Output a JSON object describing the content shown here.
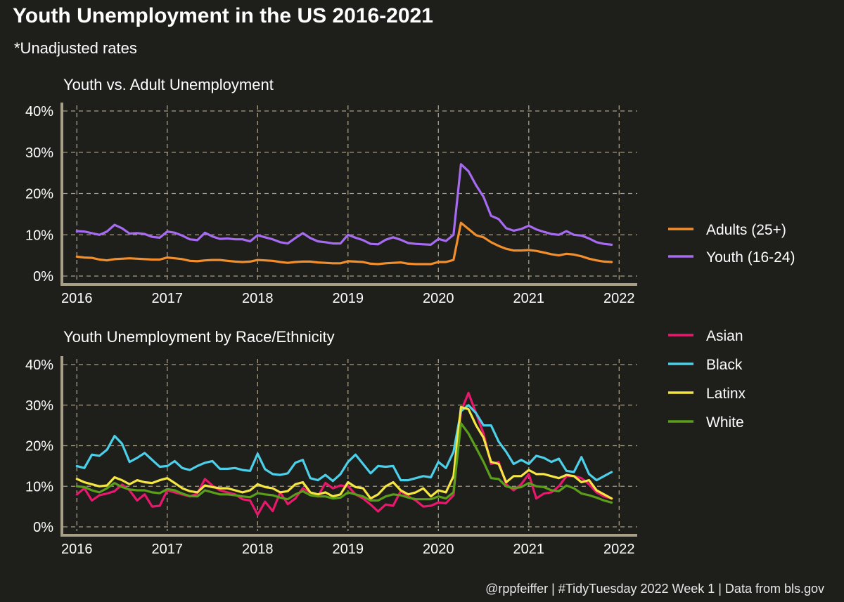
{
  "title": "Youth Unemployment in the US 2016-2021",
  "subtitle": "*Unadjusted rates",
  "caption": "@rppfeiffer | #TidyTuesday 2022 Week 1 | Data from bls.gov",
  "colors": {
    "background": "#1e1e1b",
    "grid": "#a89f88",
    "axis": "#a89f88",
    "text": "#ffffff"
  },
  "chart_data": [
    {
      "type": "line",
      "title": "Youth vs. Adult Unemployment",
      "xlabel": "",
      "ylabel": "",
      "x_unit": "year",
      "xlim": [
        2015.85,
        2022.2
      ],
      "ylim": [
        0,
        40
      ],
      "x_ticks": [
        2016,
        2017,
        2018,
        2019,
        2020,
        2021,
        2022
      ],
      "y_ticks": [
        0,
        10,
        20,
        30,
        40
      ],
      "y_tick_labels": [
        "0%",
        "10%",
        "20%",
        "30%",
        "40%"
      ],
      "grid": true,
      "legend_position": "right",
      "x": [
        2016,
        2016.083,
        2016.167,
        2016.25,
        2016.333,
        2016.417,
        2016.5,
        2016.583,
        2016.667,
        2016.75,
        2016.833,
        2016.917,
        2017,
        2017.083,
        2017.167,
        2017.25,
        2017.333,
        2017.417,
        2017.5,
        2017.583,
        2017.667,
        2017.75,
        2017.833,
        2017.917,
        2018,
        2018.083,
        2018.167,
        2018.25,
        2018.333,
        2018.417,
        2018.5,
        2018.583,
        2018.667,
        2018.75,
        2018.833,
        2018.917,
        2019,
        2019.083,
        2019.167,
        2019.25,
        2019.333,
        2019.417,
        2019.5,
        2019.583,
        2019.667,
        2019.75,
        2019.833,
        2019.917,
        2020,
        2020.083,
        2020.167,
        2020.25,
        2020.333,
        2020.417,
        2020.5,
        2020.583,
        2020.667,
        2020.75,
        2020.833,
        2020.917,
        2021,
        2021.083,
        2021.167,
        2021.25,
        2021.333,
        2021.417,
        2021.5,
        2021.583,
        2021.667,
        2021.75,
        2021.833,
        2021.917
      ],
      "series": [
        {
          "name": "Adults (25+)",
          "color": "#f28e2b",
          "values": [
            4.7,
            4.5,
            4.4,
            4.0,
            3.8,
            4.1,
            4.2,
            4.3,
            4.2,
            4.1,
            4.0,
            4.0,
            4.5,
            4.3,
            4.1,
            3.7,
            3.6,
            3.8,
            3.9,
            3.9,
            3.7,
            3.5,
            3.4,
            3.5,
            3.9,
            3.8,
            3.7,
            3.4,
            3.2,
            3.4,
            3.5,
            3.5,
            3.3,
            3.2,
            3.1,
            3.1,
            3.6,
            3.5,
            3.4,
            3.0,
            2.9,
            3.1,
            3.2,
            3.3,
            3.0,
            2.9,
            2.9,
            2.9,
            3.4,
            3.4,
            3.9,
            12.9,
            11.4,
            9.9,
            9.4,
            8.2,
            7.3,
            6.6,
            6.2,
            6.2,
            6.3,
            6.1,
            5.7,
            5.3,
            5.0,
            5.4,
            5.2,
            4.8,
            4.2,
            3.8,
            3.5,
            3.4
          ]
        },
        {
          "name": "Youth (16-24)",
          "color": "#a66bf0",
          "values": [
            10.9,
            10.8,
            10.4,
            10.0,
            10.8,
            12.4,
            11.6,
            10.3,
            10.4,
            10.2,
            9.5,
            9.3,
            10.8,
            10.5,
            9.8,
            8.9,
            8.7,
            10.5,
            9.6,
            9.0,
            9.1,
            8.9,
            8.9,
            8.4,
            9.9,
            9.4,
            8.9,
            8.2,
            7.9,
            9.2,
            10.4,
            9.2,
            8.4,
            8.2,
            7.9,
            7.9,
            10.0,
            9.3,
            8.7,
            7.8,
            7.7,
            8.8,
            9.4,
            8.8,
            8.0,
            7.8,
            7.7,
            7.6,
            9.0,
            8.5,
            10.0,
            27.1,
            25.4,
            22.0,
            19.2,
            14.6,
            13.8,
            11.6,
            11.0,
            11.4,
            12.2,
            11.3,
            10.7,
            10.2,
            10.0,
            10.9,
            10.0,
            9.8,
            9.1,
            8.2,
            7.8,
            7.6
          ]
        }
      ]
    },
    {
      "type": "line",
      "title": "Youth Unemployment by Race/Ethnicity",
      "xlabel": "",
      "ylabel": "",
      "x_unit": "year",
      "xlim": [
        2015.85,
        2022.2
      ],
      "ylim": [
        0,
        40
      ],
      "x_ticks": [
        2016,
        2017,
        2018,
        2019,
        2020,
        2021,
        2022
      ],
      "y_ticks": [
        0,
        10,
        20,
        30,
        40
      ],
      "y_tick_labels": [
        "0%",
        "10%",
        "20%",
        "30%",
        "40%"
      ],
      "grid": true,
      "legend_position": "top-right",
      "x": [
        2016,
        2016.083,
        2016.167,
        2016.25,
        2016.333,
        2016.417,
        2016.5,
        2016.583,
        2016.667,
        2016.75,
        2016.833,
        2016.917,
        2017,
        2017.083,
        2017.167,
        2017.25,
        2017.333,
        2017.417,
        2017.5,
        2017.583,
        2017.667,
        2017.75,
        2017.833,
        2017.917,
        2018,
        2018.083,
        2018.167,
        2018.25,
        2018.333,
        2018.417,
        2018.5,
        2018.583,
        2018.667,
        2018.75,
        2018.833,
        2018.917,
        2019,
        2019.083,
        2019.167,
        2019.25,
        2019.333,
        2019.417,
        2019.5,
        2019.583,
        2019.667,
        2019.75,
        2019.833,
        2019.917,
        2020,
        2020.083,
        2020.167,
        2020.25,
        2020.333,
        2020.417,
        2020.5,
        2020.583,
        2020.667,
        2020.75,
        2020.833,
        2020.917,
        2021,
        2021.083,
        2021.167,
        2021.25,
        2021.333,
        2021.417,
        2021.5,
        2021.583,
        2021.667,
        2021.75,
        2021.833,
        2021.917
      ],
      "series": [
        {
          "name": "Asian",
          "color": "#e8186c",
          "values": [
            8.0,
            9.5,
            6.5,
            7.8,
            8.2,
            8.8,
            10.4,
            9.0,
            6.5,
            8.0,
            5.0,
            5.2,
            9.0,
            8.5,
            8.0,
            7.5,
            8.2,
            11.8,
            10.2,
            9.0,
            8.5,
            8.0,
            6.8,
            6.5,
            3.0,
            6.2,
            3.9,
            8.5,
            5.6,
            7.0,
            9.5,
            8.5,
            7.5,
            10.8,
            9.5,
            10.2,
            10.0,
            8.0,
            7.0,
            5.5,
            3.8,
            5.5,
            5.2,
            8.8,
            7.5,
            6.5,
            5.0,
            5.2,
            6.0,
            5.8,
            7.8,
            28.5,
            33.0,
            28.0,
            23.0,
            15.5,
            16.0,
            10.5,
            9.0,
            10.5,
            13.0,
            7.0,
            8.2,
            8.5,
            10.0,
            12.5,
            12.5,
            12.0,
            10.5,
            8.5,
            7.5,
            7.0
          ]
        },
        {
          "name": "Black",
          "color": "#4ccfe8",
          "values": [
            15.0,
            14.5,
            17.8,
            17.5,
            19.0,
            22.4,
            20.5,
            16.0,
            17.0,
            18.2,
            16.5,
            14.8,
            15.0,
            16.2,
            14.5,
            14.0,
            15.0,
            15.8,
            16.2,
            14.3,
            14.3,
            14.5,
            14.0,
            13.8,
            18.0,
            14.2,
            13.0,
            12.8,
            13.2,
            15.8,
            16.5,
            12.0,
            11.5,
            12.8,
            11.3,
            13.0,
            16.0,
            17.8,
            15.5,
            13.2,
            15.0,
            14.8,
            15.0,
            11.5,
            11.5,
            12.0,
            12.5,
            12.2,
            16.0,
            14.5,
            18.5,
            28.5,
            30.0,
            28.0,
            25.0,
            25.0,
            21.0,
            18.5,
            15.5,
            16.5,
            15.5,
            17.5,
            17.0,
            16.0,
            16.8,
            13.8,
            13.5,
            17.2,
            13.0,
            11.5,
            12.5,
            13.5
          ]
        },
        {
          "name": "Latinx",
          "color": "#f5e642",
          "values": [
            11.8,
            11.0,
            10.5,
            10.0,
            10.2,
            12.2,
            11.5,
            10.5,
            11.5,
            11.0,
            10.8,
            11.5,
            12.0,
            10.8,
            9.5,
            8.8,
            8.5,
            10.2,
            9.8,
            9.5,
            9.5,
            9.0,
            8.5,
            9.0,
            10.5,
            9.8,
            9.5,
            8.5,
            8.8,
            10.5,
            11.0,
            8.5,
            8.0,
            8.5,
            7.5,
            8.0,
            11.0,
            9.8,
            9.5,
            7.0,
            8.0,
            10.0,
            11.0,
            9.0,
            8.0,
            8.5,
            9.5,
            7.5,
            9.0,
            8.5,
            12.5,
            29.5,
            29.0,
            25.0,
            22.0,
            16.0,
            15.5,
            11.0,
            12.5,
            12.5,
            14.0,
            13.0,
            13.0,
            12.5,
            12.0,
            12.8,
            12.5,
            11.0,
            11.5,
            9.0,
            8.0,
            7.0
          ]
        },
        {
          "name": "White",
          "color": "#5a9e1a",
          "values": [
            10.0,
            9.8,
            9.0,
            8.5,
            9.5,
            10.8,
            9.8,
            9.2,
            9.0,
            9.0,
            8.5,
            8.3,
            9.3,
            9.0,
            8.2,
            7.6,
            7.5,
            9.0,
            8.5,
            8.0,
            8.0,
            7.8,
            7.5,
            7.3,
            8.3,
            8.0,
            7.8,
            7.2,
            6.8,
            8.0,
            8.8,
            7.8,
            7.5,
            7.5,
            7.0,
            7.2,
            8.5,
            8.0,
            7.5,
            6.5,
            6.5,
            7.5,
            8.0,
            7.8,
            7.2,
            6.8,
            6.8,
            6.8,
            7.5,
            7.0,
            8.5,
            25.5,
            23.0,
            19.5,
            16.0,
            12.0,
            11.8,
            10.0,
            9.5,
            9.8,
            10.8,
            10.0,
            9.8,
            9.0,
            8.8,
            10.2,
            9.5,
            8.2,
            7.8,
            7.2,
            6.5,
            6.0
          ]
        }
      ]
    }
  ]
}
